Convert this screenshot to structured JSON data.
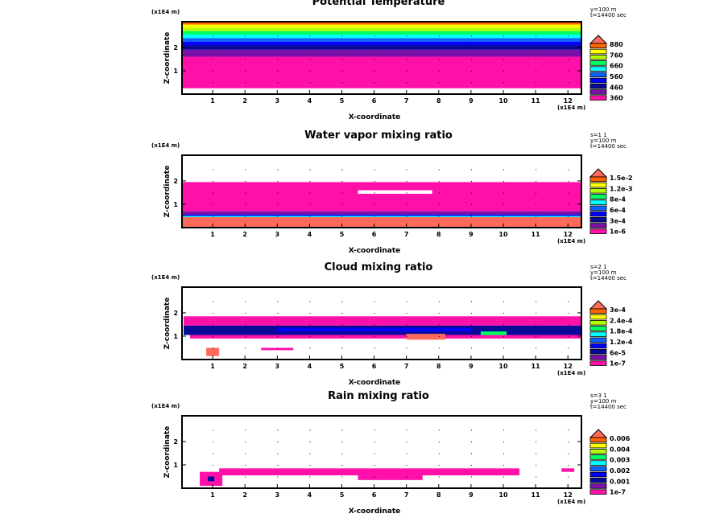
{
  "palette": [
    "#ff10a8",
    "#7a10a8",
    "#0a0a9a",
    "#0000ff",
    "#0a64ff",
    "#00ffff",
    "#00ff60",
    "#b4ff00",
    "#ffff00",
    "#ff6400"
  ],
  "tip_color": "#ff6a5a",
  "chart_data": [
    {
      "type": "heatmap",
      "title": "Potential Temperature",
      "xlabel": "X-coordinate",
      "ylabel": "Z-coordinate",
      "x_unit": "(x1E4 m)",
      "z_unit": "(x1E4 m)",
      "xlim": [
        0,
        12.4
      ],
      "zlim": [
        0,
        3.1
      ],
      "xticks": [
        "1",
        "2",
        "3",
        "4",
        "5",
        "6",
        "7",
        "8",
        "9",
        "10",
        "11",
        "12"
      ],
      "zticks": [
        "1",
        "2"
      ],
      "annotation": [
        "y=100 m",
        "t=14400 sec"
      ],
      "legend_labels": [
        "880",
        "760",
        "660",
        "560",
        "460",
        "360"
      ],
      "layers": [
        {
          "x": [
            0,
            12.4
          ],
          "z": [
            0.25,
            1.6
          ],
          "c": 0
        },
        {
          "x": [
            0,
            12.4
          ],
          "z": [
            1.6,
            1.9
          ],
          "c": 1
        },
        {
          "x": [
            0,
            12.4
          ],
          "z": [
            1.9,
            2.1
          ],
          "c": 2
        },
        {
          "x": [
            0,
            12.4
          ],
          "z": [
            2.1,
            2.25
          ],
          "c": 3
        },
        {
          "x": [
            0,
            12.4
          ],
          "z": [
            2.25,
            2.4
          ],
          "c": 4
        },
        {
          "x": [
            0,
            12.4
          ],
          "z": [
            2.4,
            2.55
          ],
          "c": 5
        },
        {
          "x": [
            0,
            12.4
          ],
          "z": [
            2.55,
            2.7
          ],
          "c": 6
        },
        {
          "x": [
            0,
            12.4
          ],
          "z": [
            2.7,
            2.85
          ],
          "c": 7
        },
        {
          "x": [
            0,
            12.4
          ],
          "z": [
            2.85,
            2.98
          ],
          "c": 8
        },
        {
          "x": [
            0,
            12.4
          ],
          "z": [
            2.98,
            3.1
          ],
          "c": 9
        }
      ]
    },
    {
      "type": "heatmap",
      "title": "Water vapor mixing ratio",
      "xlabel": "X-coordinate",
      "ylabel": "Z-coordinate",
      "x_unit": "(x1E4 m)",
      "z_unit": "(x1E4 m)",
      "xlim": [
        0,
        12.4
      ],
      "zlim": [
        0,
        3.1
      ],
      "xticks": [
        "1",
        "2",
        "3",
        "4",
        "5",
        "6",
        "7",
        "8",
        "9",
        "10",
        "11",
        "12"
      ],
      "zticks": [
        "1",
        "2"
      ],
      "annotation": [
        "s=1 1",
        "y=100 m",
        "t=14400 sec"
      ],
      "legend_labels": [
        "1.5e-2",
        "1.2e-3",
        "8e-4",
        "6e-4",
        "3e-4",
        "1e-6"
      ],
      "layers": [
        {
          "x": [
            0,
            12.4
          ],
          "z": [
            0.7,
            1.95
          ],
          "c": 0
        },
        {
          "x": [
            5.5,
            7.8
          ],
          "z": [
            1.45,
            1.6
          ],
          "c": -1
        },
        {
          "x": [
            0,
            12.4
          ],
          "z": [
            0.55,
            0.7
          ],
          "c": 1
        },
        {
          "x": [
            0,
            12.4
          ],
          "z": [
            0.5,
            0.55
          ],
          "c": 3
        },
        {
          "x": [
            0,
            12.4
          ],
          "z": [
            0.45,
            0.5
          ],
          "c": 5
        },
        {
          "x": [
            0,
            12.4
          ],
          "z": [
            0.0,
            0.45
          ],
          "c": "tip"
        }
      ]
    },
    {
      "type": "heatmap",
      "title": "Cloud mixing ratio",
      "xlabel": "X-coordinate",
      "ylabel": "Z-coordinate",
      "x_unit": "(x1E4 m)",
      "z_unit": "(x1E4 m)",
      "xlim": [
        0,
        12.4
      ],
      "zlim": [
        0,
        3.1
      ],
      "xticks": [
        "1",
        "2",
        "3",
        "4",
        "5",
        "6",
        "7",
        "8",
        "9",
        "10",
        "11",
        "12"
      ],
      "zticks": [
        "1",
        "2"
      ],
      "annotation": [
        "s=2 1",
        "y=100 m",
        "t=14400 sec"
      ],
      "legend_labels": [
        "3e-4",
        "2.4e-4",
        "1.8e-4",
        "1.2e-4",
        "6e-5",
        "1e-7"
      ],
      "layers": [
        {
          "x": [
            0.1,
            12.4
          ],
          "z": [
            1.55,
            1.85
          ],
          "c": 0
        },
        {
          "x": [
            0.1,
            12.4
          ],
          "z": [
            1.45,
            1.55
          ],
          "c": 0
        },
        {
          "x": [
            0.1,
            12.4
          ],
          "z": [
            1.05,
            1.45
          ],
          "c": 2
        },
        {
          "x": [
            3,
            9
          ],
          "z": [
            1.2,
            1.35
          ],
          "c": 3
        },
        {
          "x": [
            0.3,
            12.4
          ],
          "z": [
            0.9,
            1.05
          ],
          "c": 0
        },
        {
          "x": [
            7,
            8.2
          ],
          "z": [
            0.85,
            1.1
          ],
          "c": "tip"
        },
        {
          "x": [
            9.3,
            10.1
          ],
          "z": [
            1.05,
            1.2
          ],
          "c": 6
        },
        {
          "x": [
            0.8,
            1.2
          ],
          "z": [
            0.15,
            0.5
          ],
          "c": "tip"
        },
        {
          "x": [
            2.5,
            3.5
          ],
          "z": [
            0.4,
            0.5
          ],
          "c": 0
        }
      ]
    },
    {
      "type": "heatmap",
      "title": "Rain mixing ratio",
      "xlabel": "X-coordinate",
      "ylabel": "Z-coordinate",
      "x_unit": "(x1E4 m)",
      "z_unit": "(x1E4 m)",
      "xlim": [
        0,
        12.4
      ],
      "zlim": [
        0,
        3.1
      ],
      "xticks": [
        "1",
        "2",
        "3",
        "4",
        "5",
        "6",
        "7",
        "8",
        "9",
        "10",
        "11",
        "12"
      ],
      "zticks": [
        "1",
        "2"
      ],
      "annotation": [
        "s=3 1",
        "y=100 m",
        "t=14400 sec"
      ],
      "legend_labels": [
        "0.006",
        "0.004",
        "0.003",
        "0.002",
        "0.001",
        "1e-7"
      ],
      "layers": [
        {
          "x": [
            1.2,
            10.5
          ],
          "z": [
            0.55,
            0.85
          ],
          "c": 0
        },
        {
          "x": [
            5.5,
            7.5
          ],
          "z": [
            0.35,
            0.6
          ],
          "c": 0
        },
        {
          "x": [
            0.6,
            1.3
          ],
          "z": [
            0.1,
            0.7
          ],
          "c": 0
        },
        {
          "x": [
            0.85,
            1.05
          ],
          "z": [
            0.3,
            0.5
          ],
          "c": 2
        },
        {
          "x": [
            11.8,
            12.2
          ],
          "z": [
            0.7,
            0.85
          ],
          "c": 0
        }
      ]
    }
  ]
}
